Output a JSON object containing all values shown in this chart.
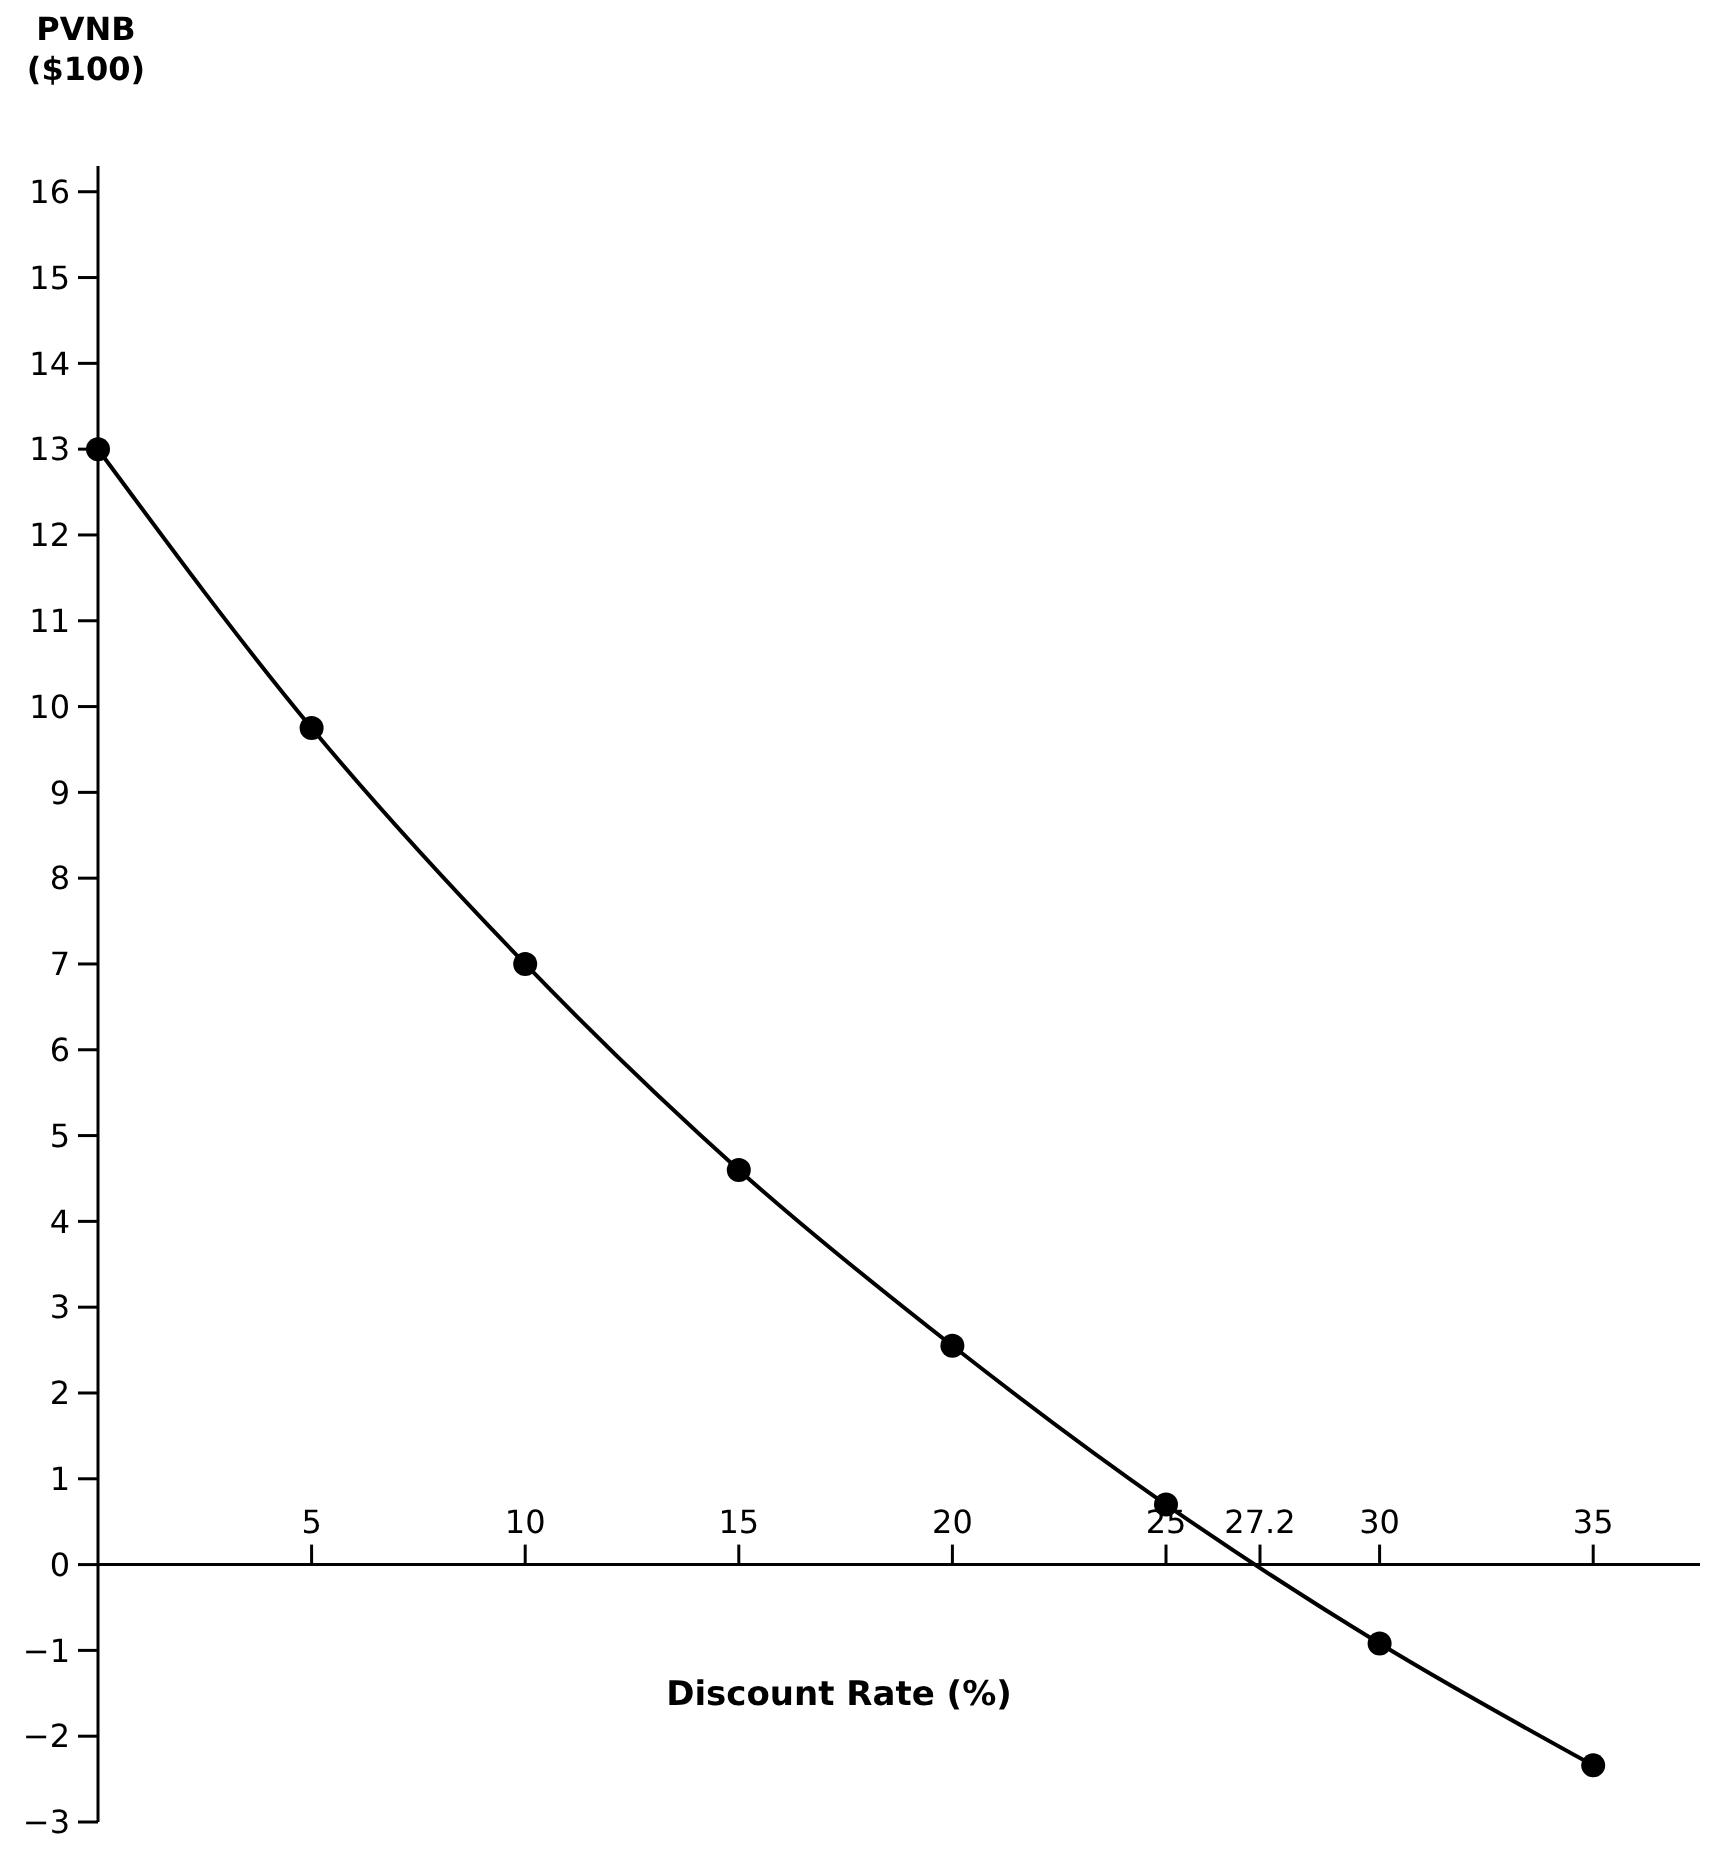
{
  "chart_data": {
    "type": "line",
    "xlabel": "Discount Rate (%)",
    "ylabel": "PVNB\n($100)",
    "x": [
      0,
      5,
      10,
      15,
      20,
      25,
      30,
      35
    ],
    "series": [
      {
        "color": "#000000",
        "values": [
          13,
          9.75,
          7,
          4.6,
          2.55,
          0.7,
          -0.92,
          -2.34
        ]
      }
    ],
    "xlim": [
      0,
      37.5
    ],
    "ylim": [
      -3,
      16.3
    ],
    "xticks": [
      5,
      10,
      15,
      20,
      25,
      27.2,
      30,
      35
    ],
    "yticks": [
      -3,
      -2,
      -1,
      0,
      1,
      2,
      3,
      4,
      5,
      6,
      7,
      8,
      9,
      10,
      11,
      12,
      13,
      14,
      15,
      16
    ],
    "marker": "circle",
    "line_style": "solid",
    "grid": false
  }
}
